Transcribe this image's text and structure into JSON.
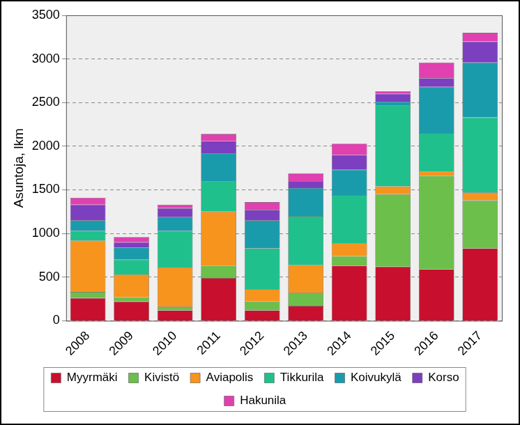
{
  "chart_data": {
    "type": "bar",
    "stacked": true,
    "y_label": "Asuntoja, lkm",
    "categories": [
      "2008",
      "2009",
      "2010",
      "2011",
      "2012",
      "2013",
      "2014",
      "2015",
      "2016",
      "2017"
    ],
    "series": [
      {
        "name": "Myyrmäki",
        "color": "#c8102e",
        "values": [
          260,
          220,
          120,
          490,
          120,
          170,
          630,
          620,
          590,
          830
        ]
      },
      {
        "name": "Kivistö",
        "color": "#6cbf4a",
        "values": [
          70,
          50,
          40,
          140,
          100,
          150,
          110,
          830,
          1070,
          550
        ]
      },
      {
        "name": "Aviapolis",
        "color": "#f7941d",
        "values": [
          590,
          260,
          450,
          620,
          140,
          320,
          150,
          90,
          50,
          90
        ]
      },
      {
        "name": "Tikkurila",
        "color": "#20c08c",
        "values": [
          110,
          170,
          420,
          350,
          470,
          560,
          550,
          930,
          440,
          860
        ]
      },
      {
        "name": "Koivukylä",
        "color": "#1a9bab",
        "values": [
          120,
          140,
          160,
          320,
          320,
          320,
          290,
          40,
          530,
          630
        ]
      },
      {
        "name": "Korso",
        "color": "#7b3fbf",
        "values": [
          180,
          60,
          100,
          140,
          120,
          80,
          170,
          90,
          100,
          240
        ]
      },
      {
        "name": "Hakunila",
        "color": "#e040b0",
        "values": [
          80,
          60,
          40,
          80,
          90,
          90,
          130,
          30,
          180,
          100
        ]
      }
    ],
    "ylim": [
      0,
      3500
    ],
    "yticks": [
      0,
      500,
      1000,
      1500,
      2000,
      2500,
      3000,
      3500
    ],
    "grid": true,
    "legend": "bottom"
  }
}
